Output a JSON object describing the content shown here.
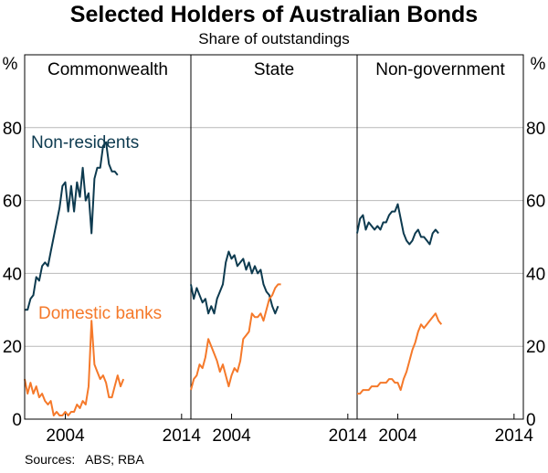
{
  "chart_data": {
    "type": "line",
    "title": "Selected Holders of Australian Bonds",
    "subtitle": "Share of outstandings",
    "unit_left": "%",
    "unit_right": "%",
    "ylim": [
      0,
      100
    ],
    "yticks": [
      0,
      20,
      40,
      60,
      80
    ],
    "x_range": [
      2000.5,
      2014.8
    ],
    "xticks": [
      2004,
      2014
    ],
    "source": "Sources:   ABS; RBA",
    "series_labels": [
      {
        "name": "Non-residents",
        "color": "#0d3a4f"
      },
      {
        "name": "Domestic banks",
        "color": "#f5792a"
      }
    ],
    "panels": [
      {
        "name": "Commonwealth",
        "series": [
          {
            "name": "Non-residents",
            "color": "#0d3a4f",
            "x_start": 2000.5,
            "step": 0.25,
            "values": [
              30,
              30,
              33,
              34,
              39,
              38,
              42,
              43,
              42,
              46,
              50,
              54,
              58,
              64,
              65,
              57,
              64,
              57,
              65,
              61,
              69,
              60,
              62,
              51,
              66,
              69,
              69,
              75,
              76,
              70,
              68,
              68,
              67
            ]
          },
          {
            "name": "Domestic banks",
            "color": "#f5792a",
            "x_start": 2000.5,
            "step": 0.25,
            "values": [
              11,
              7,
              10,
              7,
              9,
              6,
              7,
              5,
              4,
              5,
              1,
              2,
              1,
              1,
              2,
              1,
              2,
              2,
              4,
              3,
              5,
              4,
              9,
              27,
              15,
              13,
              11,
              12,
              10,
              6,
              6,
              9,
              12,
              9,
              11
            ]
          }
        ]
      },
      {
        "name": "State",
        "series": [
          {
            "name": "Non-residents",
            "color": "#0d3a4f",
            "x_start": 2000.5,
            "step": 0.25,
            "values": [
              37,
              33,
              36,
              34,
              32,
              33,
              29,
              31,
              29,
              33,
              35,
              37,
              43,
              46,
              44,
              45,
              42,
              43,
              44,
              41,
              43,
              40,
              42,
              40,
              41,
              37,
              35,
              34,
              31,
              29,
              31
            ]
          },
          {
            "name": "Domestic banks",
            "color": "#f5792a",
            "x_start": 2000.5,
            "step": 0.25,
            "values": [
              8,
              11,
              12,
              15,
              14,
              17,
              22,
              20,
              18,
              16,
              13,
              15,
              12,
              9,
              12,
              14,
              13,
              16,
              22,
              23,
              24,
              29,
              28,
              28,
              29,
              27,
              30,
              33,
              34,
              36,
              37,
              37
            ]
          }
        ]
      },
      {
        "name": "Non-government",
        "series": [
          {
            "name": "Non-residents",
            "color": "#0d3a4f",
            "x_start": 2000.5,
            "step": 0.25,
            "values": [
              51,
              55,
              56,
              52,
              54,
              53,
              52,
              53,
              52,
              54,
              54,
              56,
              57,
              57,
              59,
              55,
              51,
              49,
              48,
              49,
              51,
              52,
              50,
              50,
              49,
              48,
              51,
              52,
              51
            ]
          },
          {
            "name": "Domestic banks",
            "color": "#f5792a",
            "x_start": 2000.5,
            "step": 0.25,
            "values": [
              7,
              7,
              8,
              8,
              8,
              9,
              9,
              9,
              10,
              10,
              10,
              11,
              11,
              10,
              10,
              8,
              11,
              13,
              16,
              19,
              21,
              24,
              26,
              25,
              26,
              27,
              28,
              29,
              27,
              26
            ]
          }
        ]
      }
    ]
  }
}
